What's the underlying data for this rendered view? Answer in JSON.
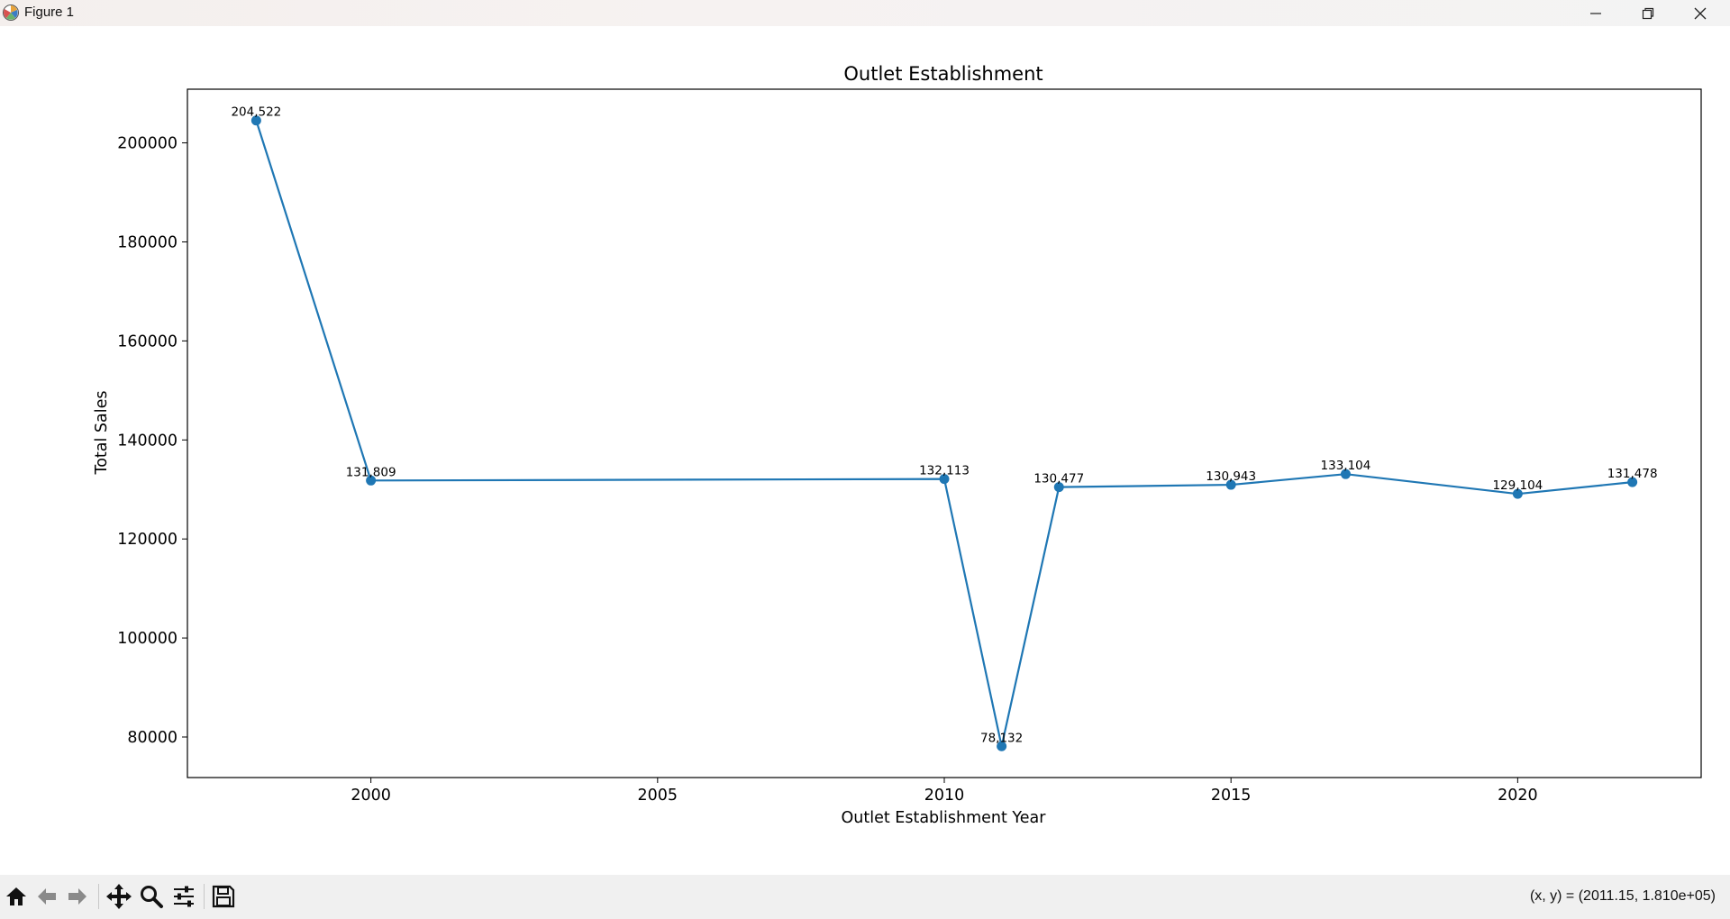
{
  "window": {
    "title": "Figure 1",
    "icons": [
      "matplotlib-logo-icon",
      "minimize-icon",
      "restore-icon",
      "close-icon"
    ]
  },
  "toolbar": {
    "tools": [
      "home-icon",
      "back-arrow-icon",
      "forward-arrow-icon",
      "pan-icon",
      "zoom-icon",
      "configure-subplots-icon",
      "save-icon"
    ],
    "coords_text": "(x, y) = (2011.15, 1.810e+05)"
  },
  "chart_data": {
    "type": "line",
    "title": "Outlet Establishment",
    "xlabel": "Outlet Establishment Year",
    "ylabel": "Total Sales",
    "x": [
      1998,
      2000,
      2010,
      2011,
      2012,
      2015,
      2017,
      2020,
      2022
    ],
    "values": [
      204522,
      131809,
      132113,
      78132,
      130477,
      130943,
      133104,
      129104,
      131478
    ],
    "data_labels": [
      "204,522",
      "131,809",
      "132,113",
      "78,132",
      "130,477",
      "130,943",
      "133,104",
      "129,104",
      "131,478"
    ],
    "xticks": [
      2000,
      2005,
      2010,
      2015,
      2020
    ],
    "yticks": [
      80000,
      100000,
      120000,
      140000,
      160000,
      180000,
      200000
    ],
    "xlim": [
      1996.8,
      2023.2
    ],
    "ylim": [
      71812,
      210842
    ],
    "color": "#1f77b4",
    "marker": "circle",
    "grid": false,
    "legend": "none"
  }
}
